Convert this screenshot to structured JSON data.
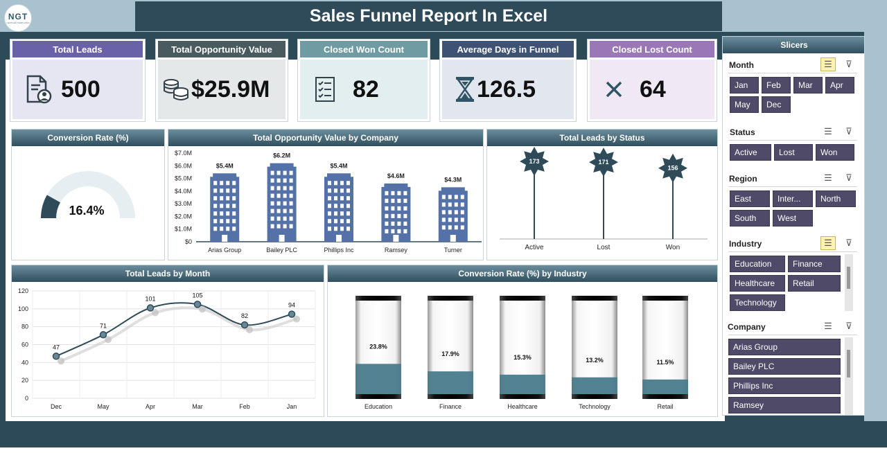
{
  "header": {
    "logo_text": "NGT",
    "logo_sub": "NEXTGEN TEMPLATES",
    "title": "Sales Funnel Report In Excel"
  },
  "kpis": [
    {
      "label": "Total Leads",
      "value": "500",
      "icon": "document-user-icon",
      "header_color": "#6a62a8",
      "body_color": "#e6e5f2"
    },
    {
      "label": "Total Opportunity Value",
      "value": "$25.9M",
      "icon": "coins-icon",
      "header_color": "#4a5b60",
      "body_color": "#e4e8e9"
    },
    {
      "label": "Closed Won Count",
      "value": "82",
      "icon": "checklist-icon",
      "header_color": "#6f9ca3",
      "body_color": "#e3eef0"
    },
    {
      "label": "Average Days in Funnel",
      "value": "126.5",
      "icon": "hourglass-icon",
      "header_color": "#3d5274",
      "body_color": "#e2e6ee"
    },
    {
      "label": "Closed Lost Count",
      "value": "64",
      "icon": "x-icon",
      "header_color": "#9a78b8",
      "body_color": "#f0e9f5"
    }
  ],
  "panels": {
    "conversion": {
      "title": "Conversion Rate (%)",
      "value": "16.4%"
    },
    "opp_by_company": {
      "title": "Total Opportunity Value by Company"
    },
    "leads_by_status": {
      "title": "Total Leads by Status"
    },
    "leads_by_month": {
      "title": "Total Leads by Month"
    },
    "conv_by_industry": {
      "title": "Conversion Rate (%) by Industry"
    }
  },
  "chart_data": [
    {
      "type": "gauge",
      "title": "Conversion Rate (%)",
      "value": 16.4,
      "max": 100,
      "label": "16.4%"
    },
    {
      "type": "bar",
      "title": "Total Opportunity Value by Company",
      "categories": [
        "Arias Group",
        "Bailey PLC",
        "Phillips Inc",
        "Ramsey",
        "Turner"
      ],
      "values": [
        5.4,
        6.2,
        5.4,
        4.6,
        4.3
      ],
      "labels": [
        "$5.4M",
        "$6.2M",
        "$5.4M",
        "$4.6M",
        "$4.3M"
      ],
      "yticks": [
        "$0",
        "$1.0M",
        "$2.0M",
        "$3.0M",
        "$4.0M",
        "$5.0M",
        "$6.0M",
        "$7.0M"
      ],
      "ylim": [
        0,
        7
      ]
    },
    {
      "type": "bar",
      "title": "Total Leads by Status",
      "categories": [
        "Active",
        "Lost",
        "Won"
      ],
      "values": [
        173,
        171,
        156
      ],
      "labels": [
        "173",
        "171",
        "156"
      ]
    },
    {
      "type": "line",
      "title": "Total Leads by Month",
      "categories": [
        "Dec",
        "May",
        "Apr",
        "Mar",
        "Feb",
        "Jan"
      ],
      "values": [
        47,
        71,
        101,
        105,
        82,
        94
      ],
      "labels": [
        "47",
        "71",
        "101",
        "105",
        "82",
        "94"
      ],
      "yticks": [
        "0",
        "20",
        "40",
        "60",
        "80",
        "100",
        "120"
      ],
      "ylim": [
        0,
        120
      ]
    },
    {
      "type": "bar",
      "title": "Conversion Rate (%) by Industry",
      "categories": [
        "Education",
        "Finance",
        "Healthcare",
        "Technology",
        "Retail"
      ],
      "values": [
        23.8,
        17.9,
        15.3,
        13.2,
        11.5
      ],
      "labels": [
        "23.8%",
        "17.9%",
        "15.3%",
        "13.2%",
        "11.5%"
      ],
      "ylim": [
        0,
        100
      ]
    }
  ],
  "slicers": {
    "title": "Slicers",
    "groups": [
      {
        "name": "Month",
        "multi_active": true,
        "items": [
          "Jan",
          "Feb",
          "Mar",
          "Apr",
          "May",
          "Dec"
        ]
      },
      {
        "name": "Status",
        "multi_active": false,
        "items": [
          "Active",
          "Lost",
          "Won"
        ]
      },
      {
        "name": "Region",
        "multi_active": false,
        "items": [
          "East",
          "Inter...",
          "North",
          "South",
          "West"
        ]
      },
      {
        "name": "Industry",
        "multi_active": true,
        "items": [
          "Education",
          "Finance",
          "Healthcare",
          "Retail",
          "Technology"
        ]
      },
      {
        "name": "Company",
        "multi_active": false,
        "items": [
          "Arias Group",
          "Bailey PLC",
          "Phillips Inc",
          "Ramsey"
        ]
      }
    ],
    "multiselect_icon": "multi-select-icon",
    "clear_icon": "clear-filter-icon"
  },
  "colors": {
    "bar_blue": "#5472a8",
    "dark_teal": "#2f4b59",
    "teal_fill": "#4a7c8c",
    "slicer_button": "#4e4a68"
  }
}
